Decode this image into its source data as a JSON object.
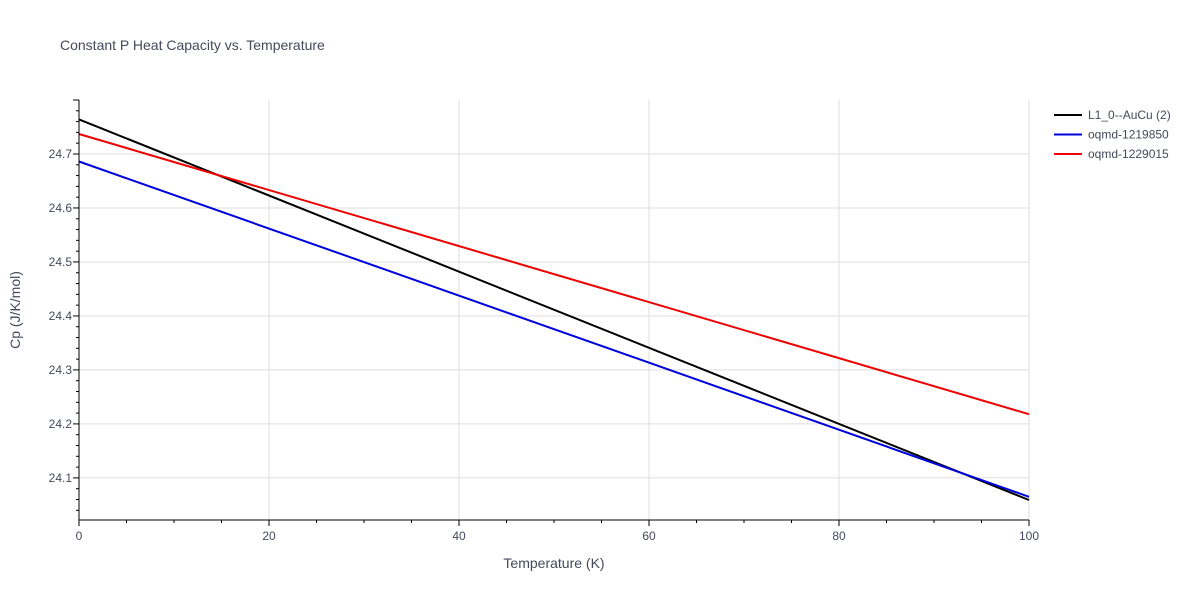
{
  "chart_data": {
    "type": "line",
    "title": "Constant P Heat Capacity vs. Temperature",
    "xlabel": "Temperature (K)",
    "ylabel": "Cp (J/K/mol)",
    "xlim": [
      0,
      100
    ],
    "ylim": [
      24.022,
      24.8
    ],
    "x_ticks": [
      0,
      20,
      40,
      60,
      80,
      100
    ],
    "y_ticks": [
      24.1,
      24.2,
      24.3,
      24.4,
      24.5,
      24.6,
      24.7
    ],
    "grid": true,
    "legend_position": "top-right",
    "series": [
      {
        "name": "L1_0--AuCu (2)",
        "color": "#000000",
        "x": [
          0,
          100
        ],
        "y": [
          24.764,
          24.059
        ]
      },
      {
        "name": "oqmd-1219850",
        "color": "#0000dd",
        "x": [
          0,
          100
        ],
        "y": [
          24.686,
          24.065
        ]
      },
      {
        "name": "oqmd-1229015",
        "color": "#ee0000",
        "x": [
          0,
          100
        ],
        "y": [
          24.737,
          24.218
        ]
      }
    ]
  }
}
